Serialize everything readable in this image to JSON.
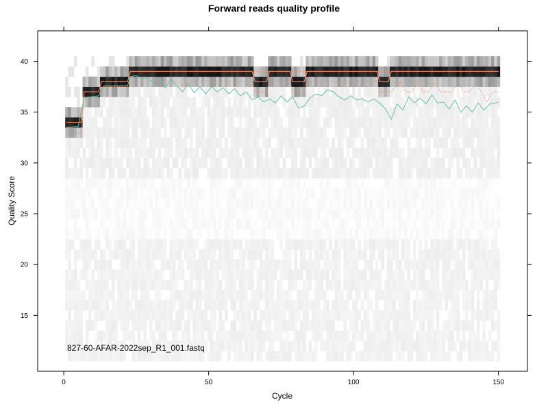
{
  "chart_data": {
    "type": "heatmap",
    "title": "Forward reads quality profile",
    "xlabel": "Cycle",
    "ylabel": "Quality Score",
    "xlim": [
      -9,
      160
    ],
    "ylim": [
      9.5,
      43
    ],
    "xticks": [
      0,
      50,
      100,
      150
    ],
    "yticks": [
      15,
      20,
      25,
      30,
      35,
      40
    ],
    "grid": false,
    "annotation": "827-60-AFAR-2022sep_R1_001.fastq",
    "colors": {
      "mean_line": "#66C2A5",
      "median_line": "#FC8D62",
      "quartile_line": "#FC8D62",
      "heat_low": "#f2f2f2",
      "heat_high": "#000000"
    },
    "series": [
      {
        "id": "mean",
        "points": [
          [
            1,
            33.5
          ],
          [
            5,
            33.6
          ],
          [
            7,
            36.4
          ],
          [
            12,
            36.6
          ],
          [
            14,
            37.6
          ],
          [
            22,
            37.6
          ],
          [
            23,
            38.5
          ],
          [
            25,
            38.6
          ],
          [
            27,
            38.2
          ],
          [
            29,
            38.4
          ],
          [
            31,
            37.8
          ],
          [
            33,
            38.4
          ],
          [
            35,
            37.4
          ],
          [
            37,
            38.2
          ],
          [
            39,
            37.6
          ],
          [
            41,
            37.0
          ],
          [
            43,
            37.8
          ],
          [
            45,
            36.9
          ],
          [
            47,
            37.5
          ],
          [
            49,
            36.8
          ],
          [
            51,
            37.5
          ],
          [
            53,
            37.0
          ],
          [
            55,
            37.4
          ],
          [
            57,
            36.8
          ],
          [
            59,
            37.3
          ],
          [
            61,
            36.6
          ],
          [
            63,
            37.0
          ],
          [
            65,
            36.2
          ],
          [
            67,
            36.5
          ],
          [
            69,
            36.0
          ],
          [
            71,
            36.3
          ],
          [
            73,
            35.9
          ],
          [
            75,
            36.6
          ],
          [
            77,
            36.0
          ],
          [
            79,
            36.5
          ],
          [
            81,
            35.4
          ],
          [
            83,
            35.6
          ],
          [
            85,
            36.4
          ],
          [
            87,
            36.8
          ],
          [
            89,
            36.6
          ],
          [
            91,
            37.2
          ],
          [
            93,
            37.0
          ],
          [
            95,
            36.5
          ],
          [
            97,
            36.2
          ],
          [
            99,
            36.6
          ],
          [
            101,
            36.2
          ],
          [
            103,
            36.3
          ],
          [
            105,
            36.0
          ],
          [
            107,
            36.3
          ],
          [
            109,
            35.9
          ],
          [
            111,
            35.3
          ],
          [
            113,
            34.3
          ],
          [
            115,
            35.8
          ],
          [
            117,
            35.2
          ],
          [
            119,
            36.5
          ],
          [
            121,
            35.9
          ],
          [
            123,
            36.4
          ],
          [
            125,
            35.8
          ],
          [
            127,
            36.7
          ],
          [
            129,
            35.9
          ],
          [
            131,
            36.0
          ],
          [
            133,
            35.3
          ],
          [
            135,
            36.2
          ],
          [
            137,
            35.0
          ],
          [
            139,
            35.6
          ],
          [
            141,
            35.0
          ],
          [
            143,
            35.9
          ],
          [
            145,
            35.2
          ],
          [
            147,
            35.8
          ],
          [
            149,
            35.9
          ],
          [
            150,
            36.0
          ]
        ]
      },
      {
        "id": "median",
        "points": [
          [
            1,
            34
          ],
          [
            6,
            34
          ],
          [
            7,
            37
          ],
          [
            12,
            37
          ],
          [
            13,
            38
          ],
          [
            22,
            38
          ],
          [
            23,
            39
          ],
          [
            65,
            39
          ],
          [
            66,
            38
          ],
          [
            70,
            38
          ],
          [
            71,
            39
          ],
          [
            78,
            39
          ],
          [
            79,
            38
          ],
          [
            83,
            38
          ],
          [
            84,
            39
          ],
          [
            108,
            39
          ],
          [
            109,
            38
          ],
          [
            112,
            38
          ],
          [
            113,
            39
          ],
          [
            150,
            39
          ]
        ]
      },
      {
        "id": "q25",
        "points": [
          [
            1,
            33
          ],
          [
            6,
            33
          ],
          [
            7,
            36.5
          ],
          [
            12,
            36.5
          ],
          [
            13,
            37.5
          ],
          [
            22,
            37.5
          ],
          [
            23,
            38
          ],
          [
            40,
            38
          ],
          [
            41,
            37.5
          ],
          [
            44,
            38
          ],
          [
            65,
            38
          ],
          [
            66,
            37
          ],
          [
            70,
            37
          ],
          [
            71,
            38
          ],
          [
            78,
            38
          ],
          [
            79,
            37
          ],
          [
            83,
            37
          ],
          [
            84,
            38
          ],
          [
            108,
            38
          ],
          [
            109,
            37
          ],
          [
            112,
            37
          ],
          [
            113,
            37
          ],
          [
            116,
            38
          ],
          [
            118,
            37
          ],
          [
            120,
            37
          ],
          [
            122,
            38
          ],
          [
            124,
            37
          ],
          [
            126,
            37
          ],
          [
            128,
            38
          ],
          [
            130,
            37
          ],
          [
            132,
            37
          ],
          [
            134,
            37
          ],
          [
            136,
            38
          ],
          [
            138,
            37
          ],
          [
            140,
            37
          ],
          [
            142,
            38
          ],
          [
            144,
            37
          ],
          [
            146,
            36
          ],
          [
            148,
            37
          ],
          [
            150,
            37
          ]
        ]
      },
      {
        "id": "q75",
        "points": [
          [
            1,
            34
          ],
          [
            6,
            34
          ],
          [
            7,
            37
          ],
          [
            12,
            37
          ],
          [
            13,
            38
          ],
          [
            22,
            38
          ],
          [
            23,
            39
          ],
          [
            150,
            39
          ]
        ]
      }
    ]
  }
}
